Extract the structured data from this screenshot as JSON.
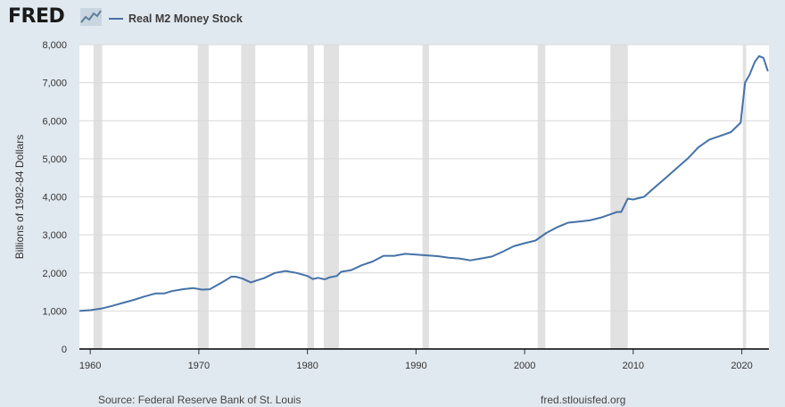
{
  "header": {
    "logo_text": "FRED",
    "logo_icon": "fred-line-chart-icon",
    "series_title": "Real M2 Money Stock"
  },
  "footer": {
    "source": "Source: Federal Reserve Bank of St. Louis",
    "site": "fred.stlouisfed.org"
  },
  "colors": {
    "background": "#e1e9f0",
    "plot_background": "#ffffff",
    "line": "#4572a7",
    "recession_shading": "#e1e1e1",
    "gridline": "#d9d9d9"
  },
  "chart_data": {
    "type": "line",
    "title": "",
    "xlabel": "",
    "ylabel": "Billions of 1982-84 Dollars",
    "xlim": [
      1959.0,
      2022.5
    ],
    "ylim": [
      0,
      8000
    ],
    "x_ticks": [
      1960,
      1970,
      1980,
      1990,
      2000,
      2010,
      2020
    ],
    "x_tick_labels": [
      "1960",
      "1970",
      "1980",
      "1990",
      "2000",
      "2010",
      "2020"
    ],
    "y_ticks": [
      0,
      1000,
      2000,
      3000,
      4000,
      5000,
      6000,
      7000,
      8000
    ],
    "y_tick_labels": [
      "0",
      "1,000",
      "2,000",
      "3,000",
      "4,000",
      "5,000",
      "6,000",
      "7,000",
      "8,000"
    ],
    "grid": "horizontal",
    "legend": "top-left",
    "recessions": [
      [
        1960.3,
        1961.1
      ],
      [
        1969.9,
        1970.9
      ],
      [
        1973.9,
        1975.2
      ],
      [
        1980.0,
        1980.6
      ],
      [
        1981.5,
        1982.9
      ],
      [
        1990.6,
        1991.2
      ],
      [
        2001.2,
        2001.9
      ],
      [
        2007.9,
        2009.5
      ],
      [
        2020.1,
        2020.4
      ]
    ],
    "series": [
      {
        "name": "Real M2 Money Stock",
        "color": "#4572a7",
        "x": [
          1959.0,
          1960.0,
          1961.0,
          1962.0,
          1963.0,
          1964.0,
          1965.0,
          1966.0,
          1966.8,
          1967.5,
          1968.5,
          1969.5,
          1970.3,
          1971.0,
          1972.0,
          1973.0,
          1973.4,
          1974.0,
          1974.8,
          1975.3,
          1976.0,
          1977.0,
          1978.0,
          1979.0,
          1980.0,
          1980.5,
          1981.0,
          1981.6,
          1982.0,
          1982.7,
          1983.1,
          1984.0,
          1985.0,
          1986.0,
          1987.0,
          1988.0,
          1989.0,
          1990.0,
          1991.0,
          1992.0,
          1993.0,
          1994.0,
          1995.0,
          1996.0,
          1997.0,
          1998.0,
          1999.0,
          2000.0,
          2001.0,
          2002.0,
          2003.0,
          2004.0,
          2005.0,
          2006.0,
          2007.0,
          2008.0,
          2008.5,
          2008.9,
          2009.5,
          2010.0,
          2011.0,
          2012.0,
          2013.0,
          2014.0,
          2015.0,
          2016.0,
          2017.0,
          2018.0,
          2019.0,
          2019.9,
          2020.3,
          2020.7,
          2021.2,
          2021.6,
          2022.0,
          2022.4
        ],
        "values": [
          1000,
          1020,
          1060,
          1130,
          1210,
          1290,
          1380,
          1460,
          1460,
          1520,
          1570,
          1600,
          1560,
          1570,
          1730,
          1900,
          1900,
          1850,
          1750,
          1800,
          1860,
          2000,
          2050,
          2000,
          1920,
          1840,
          1870,
          1830,
          1880,
          1920,
          2030,
          2070,
          2200,
          2300,
          2450,
          2450,
          2500,
          2480,
          2460,
          2440,
          2400,
          2380,
          2330,
          2380,
          2430,
          2560,
          2700,
          2780,
          2850,
          3050,
          3200,
          3320,
          3350,
          3380,
          3450,
          3550,
          3600,
          3600,
          3950,
          3930,
          4000,
          4250,
          4500,
          4750,
          5000,
          5300,
          5500,
          5600,
          5700,
          5950,
          7000,
          7200,
          7550,
          7700,
          7650,
          7300
        ]
      }
    ]
  }
}
